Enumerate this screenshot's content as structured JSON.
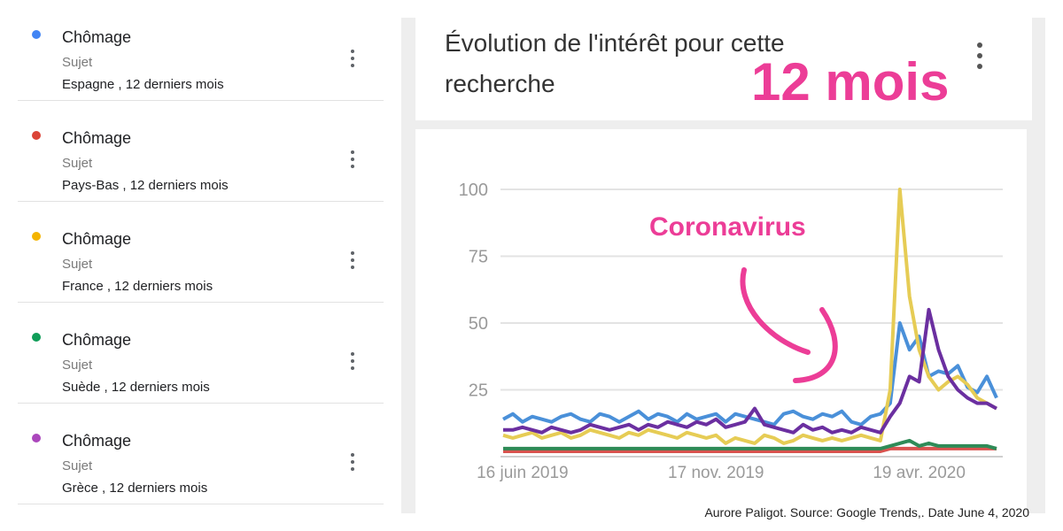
{
  "sidebar": {
    "items": [
      {
        "term": "Chômage",
        "type": "Sujet",
        "region": "Espagne , 12 derniers mois",
        "color": "#4285f4"
      },
      {
        "term": "Chômage",
        "type": "Sujet",
        "region": "Pays-Bas , 12 derniers mois",
        "color": "#db4437"
      },
      {
        "term": "Chômage",
        "type": "Sujet",
        "region": "France , 12 derniers mois",
        "color": "#f4b400"
      },
      {
        "term": "Chômage",
        "type": "Sujet",
        "region": "Suède , 12 derniers mois",
        "color": "#0f9d58"
      },
      {
        "term": "Chômage",
        "type": "Sujet",
        "region": "Grèce , 12 derniers mois",
        "color": "#ab47bc"
      }
    ]
  },
  "panel": {
    "title": "Évolution de l'intérêt pour cette recherche",
    "annotation_period": "12 mois",
    "annotation_event": "Coronavirus",
    "menu_icon": "more-vert-icon"
  },
  "credit": "Aurore Paligot. Source: Google  Trends,. Date  June 4, 2020",
  "chart_data": {
    "type": "line",
    "title": "Évolution de l'intérêt pour cette recherche",
    "ylim": [
      0,
      100
    ],
    "yticks": [
      25,
      50,
      75,
      100
    ],
    "ytick_labels": [
      "25",
      "50",
      "75",
      "100"
    ],
    "x": [
      0,
      1,
      2,
      3,
      4,
      5,
      6,
      7,
      8,
      9,
      10,
      11,
      12,
      13,
      14,
      15,
      16,
      17,
      18,
      19,
      20,
      21,
      22,
      23,
      24,
      25,
      26,
      27,
      28,
      29,
      30,
      31,
      32,
      33,
      34,
      35,
      36,
      37,
      38,
      39,
      40,
      41,
      42,
      43,
      44,
      45,
      46,
      47,
      48,
      49,
      50,
      51
    ],
    "x_range": [
      0,
      51
    ],
    "xtick_positions": [
      2,
      22,
      43
    ],
    "xtick_labels": [
      "16 juin 2019",
      "17 nov. 2019",
      "19 avr. 2020"
    ],
    "series": [
      {
        "color": "#4a90d9",
        "values": [
          14,
          16,
          13,
          15,
          14,
          13,
          15,
          16,
          14,
          13,
          16,
          15,
          13,
          15,
          17,
          14,
          16,
          15,
          13,
          16,
          14,
          15,
          16,
          13,
          16,
          15,
          14,
          13,
          12,
          16,
          17,
          15,
          14,
          16,
          15,
          17,
          13,
          12,
          15,
          16,
          20,
          50,
          40,
          45,
          30,
          32,
          31,
          34,
          26,
          24,
          30,
          22
        ]
      },
      {
        "color": "#d9534f",
        "values": [
          2,
          2,
          2,
          2,
          2,
          2,
          2,
          2,
          2,
          2,
          2,
          2,
          2,
          2,
          2,
          2,
          2,
          2,
          2,
          2,
          2,
          2,
          2,
          2,
          2,
          2,
          2,
          2,
          2,
          2,
          2,
          2,
          2,
          2,
          2,
          2,
          2,
          2,
          2,
          2,
          3,
          3,
          3,
          3,
          3,
          3,
          3,
          3,
          3,
          3,
          3,
          3
        ]
      },
      {
        "color": "#e6cc55",
        "values": [
          8,
          7,
          8,
          9,
          7,
          8,
          9,
          7,
          8,
          10,
          9,
          8,
          7,
          9,
          8,
          10,
          9,
          8,
          7,
          9,
          8,
          7,
          8,
          5,
          7,
          6,
          5,
          8,
          7,
          5,
          6,
          8,
          7,
          6,
          7,
          6,
          7,
          8,
          7,
          6,
          25,
          100,
          60,
          40,
          30,
          25,
          28,
          30,
          27,
          22,
          20,
          18
        ]
      },
      {
        "color": "#2e8b57",
        "values": [
          3,
          3,
          3,
          3,
          3,
          3,
          3,
          3,
          3,
          3,
          3,
          3,
          3,
          3,
          3,
          3,
          3,
          3,
          3,
          3,
          3,
          3,
          3,
          3,
          3,
          3,
          3,
          3,
          3,
          3,
          3,
          3,
          3,
          3,
          3,
          3,
          3,
          3,
          3,
          3,
          4,
          5,
          6,
          4,
          5,
          4,
          4,
          4,
          4,
          4,
          4,
          3
        ]
      },
      {
        "color": "#6b2fa0",
        "values": [
          10,
          10,
          11,
          10,
          9,
          11,
          10,
          9,
          10,
          12,
          11,
          10,
          11,
          12,
          10,
          12,
          11,
          13,
          12,
          11,
          13,
          12,
          14,
          11,
          12,
          13,
          18,
          12,
          11,
          10,
          9,
          12,
          10,
          11,
          9,
          10,
          9,
          11,
          10,
          9,
          15,
          20,
          30,
          28,
          55,
          40,
          30,
          25,
          22,
          20,
          20,
          18
        ]
      }
    ]
  }
}
